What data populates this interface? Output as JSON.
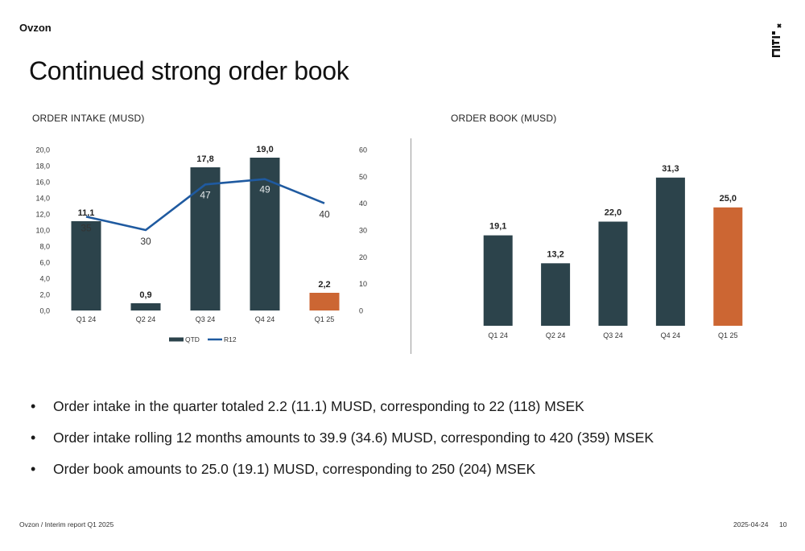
{
  "header": {
    "brand": "Ovzon",
    "title": "Continued strong order book"
  },
  "colors": {
    "bar": "#2c434b",
    "highlight": "#cc6633",
    "line": "#1f5aa0"
  },
  "chart_data": [
    {
      "type": "bar",
      "title": "ORDER INTAKE (MUSD)",
      "categories": [
        "Q1 24",
        "Q2 24",
        "Q3 24",
        "Q4 24",
        "Q1 25"
      ],
      "series": [
        {
          "name": "QTD",
          "type": "bar",
          "values": [
            11.1,
            0.9,
            17.8,
            19.0,
            2.2
          ],
          "labels": [
            "11,1",
            "0,9",
            "17,8",
            "19,0",
            "2,2"
          ],
          "axis": "left"
        },
        {
          "name": "R12",
          "type": "line",
          "values": [
            35,
            30,
            47,
            49,
            40
          ],
          "labels": [
            "35",
            "30",
            "47",
            "49",
            "40"
          ],
          "axis": "right"
        }
      ],
      "left_ticks": [
        "0,0",
        "2,0",
        "4,0",
        "6,0",
        "8,0",
        "10,0",
        "12,0",
        "14,0",
        "16,0",
        "18,0",
        "20,0"
      ],
      "right_ticks": [
        "0",
        "10",
        "20",
        "30",
        "40",
        "50",
        "60"
      ],
      "ylim": [
        0,
        20
      ],
      "y2lim": [
        0,
        60
      ],
      "highlight_index": 4,
      "legend": [
        "QTD",
        "R12"
      ],
      "legend_position": "bottom"
    },
    {
      "type": "bar",
      "title": "ORDER BOOK (MUSD)",
      "categories": [
        "Q1 24",
        "Q2 24",
        "Q3 24",
        "Q4 24",
        "Q1 25"
      ],
      "values": [
        19.1,
        13.2,
        22.0,
        31.3,
        25.0
      ],
      "labels": [
        "19,1",
        "13,2",
        "22,0",
        "31,3",
        "25,0"
      ],
      "ylim": [
        0,
        35
      ],
      "highlight_index": 4
    }
  ],
  "bullets": [
    "Order intake in the quarter totaled 2.2 (11.1) MUSD, corresponding to 22 (118) MSEK",
    "Order intake rolling 12 months amounts to 39.9 (34.6) MUSD, corresponding to 420 (359) MSEK",
    "Order book amounts to 25.0 (19.1) MUSD, corresponding to 250 (204) MSEK"
  ],
  "footer": {
    "left": "Ovzon / Interim report Q1 2025",
    "date": "2025-04-24",
    "page": "10"
  }
}
